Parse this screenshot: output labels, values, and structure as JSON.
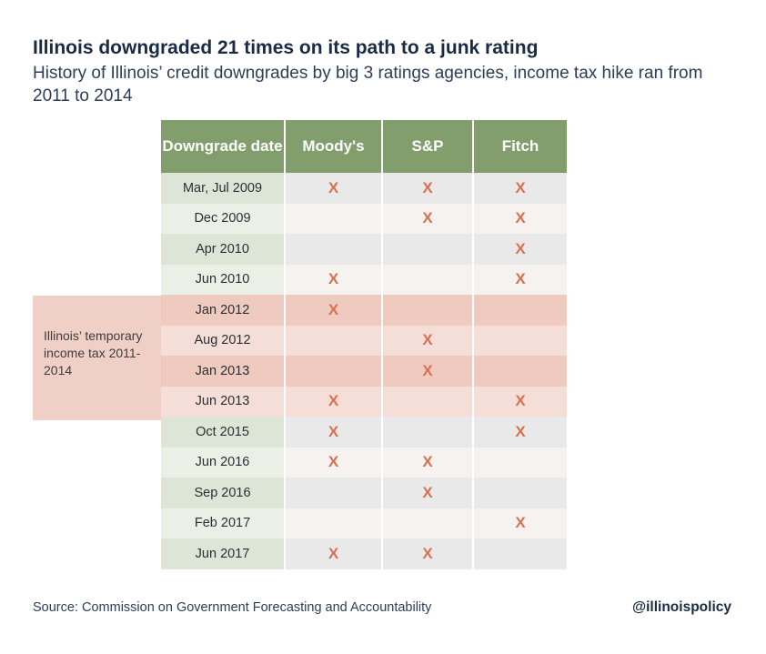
{
  "title": "Illinois downgraded 21 times on its path to a junk rating",
  "subtitle": "History of Illinois’ credit downgrades by big 3 ratings agencies, income tax hike ran from 2011 to 2014",
  "band_label": "Illinois’ temporary income tax 2011-2014",
  "source": "Source: Commission on Government Forecasting and Accountability",
  "handle": "@illinoispolicy",
  "colors": {
    "header_green": "#829e6c",
    "mark_x": "#d9704f",
    "tax_band": "#f0cfc6"
  },
  "chart_data": {
    "type": "table",
    "columns": [
      "Downgrade date",
      "Moody's",
      "S&P",
      "Fitch"
    ],
    "mark_symbol": "X",
    "rows": [
      {
        "date": "Mar, Jul 2009",
        "marks": [
          true,
          true,
          true
        ],
        "tax": false
      },
      {
        "date": "Dec 2009",
        "marks": [
          false,
          true,
          true
        ],
        "tax": false
      },
      {
        "date": "Apr 2010",
        "marks": [
          false,
          false,
          true
        ],
        "tax": false
      },
      {
        "date": "Jun 2010",
        "marks": [
          true,
          false,
          true
        ],
        "tax": false
      },
      {
        "date": "Jan 2012",
        "marks": [
          true,
          false,
          false
        ],
        "tax": true
      },
      {
        "date": "Aug 2012",
        "marks": [
          false,
          true,
          false
        ],
        "tax": true
      },
      {
        "date": "Jan 2013",
        "marks": [
          false,
          true,
          false
        ],
        "tax": true
      },
      {
        "date": "Jun 2013",
        "marks": [
          true,
          false,
          true
        ],
        "tax": true
      },
      {
        "date": "Oct 2015",
        "marks": [
          true,
          false,
          true
        ],
        "tax": false
      },
      {
        "date": "Jun 2016",
        "marks": [
          true,
          true,
          false
        ],
        "tax": false
      },
      {
        "date": "Sep 2016",
        "marks": [
          false,
          true,
          false
        ],
        "tax": false
      },
      {
        "date": "Feb 2017",
        "marks": [
          false,
          false,
          true
        ],
        "tax": false
      },
      {
        "date": "Jun 2017",
        "marks": [
          true,
          true,
          false
        ],
        "tax": false
      }
    ]
  }
}
